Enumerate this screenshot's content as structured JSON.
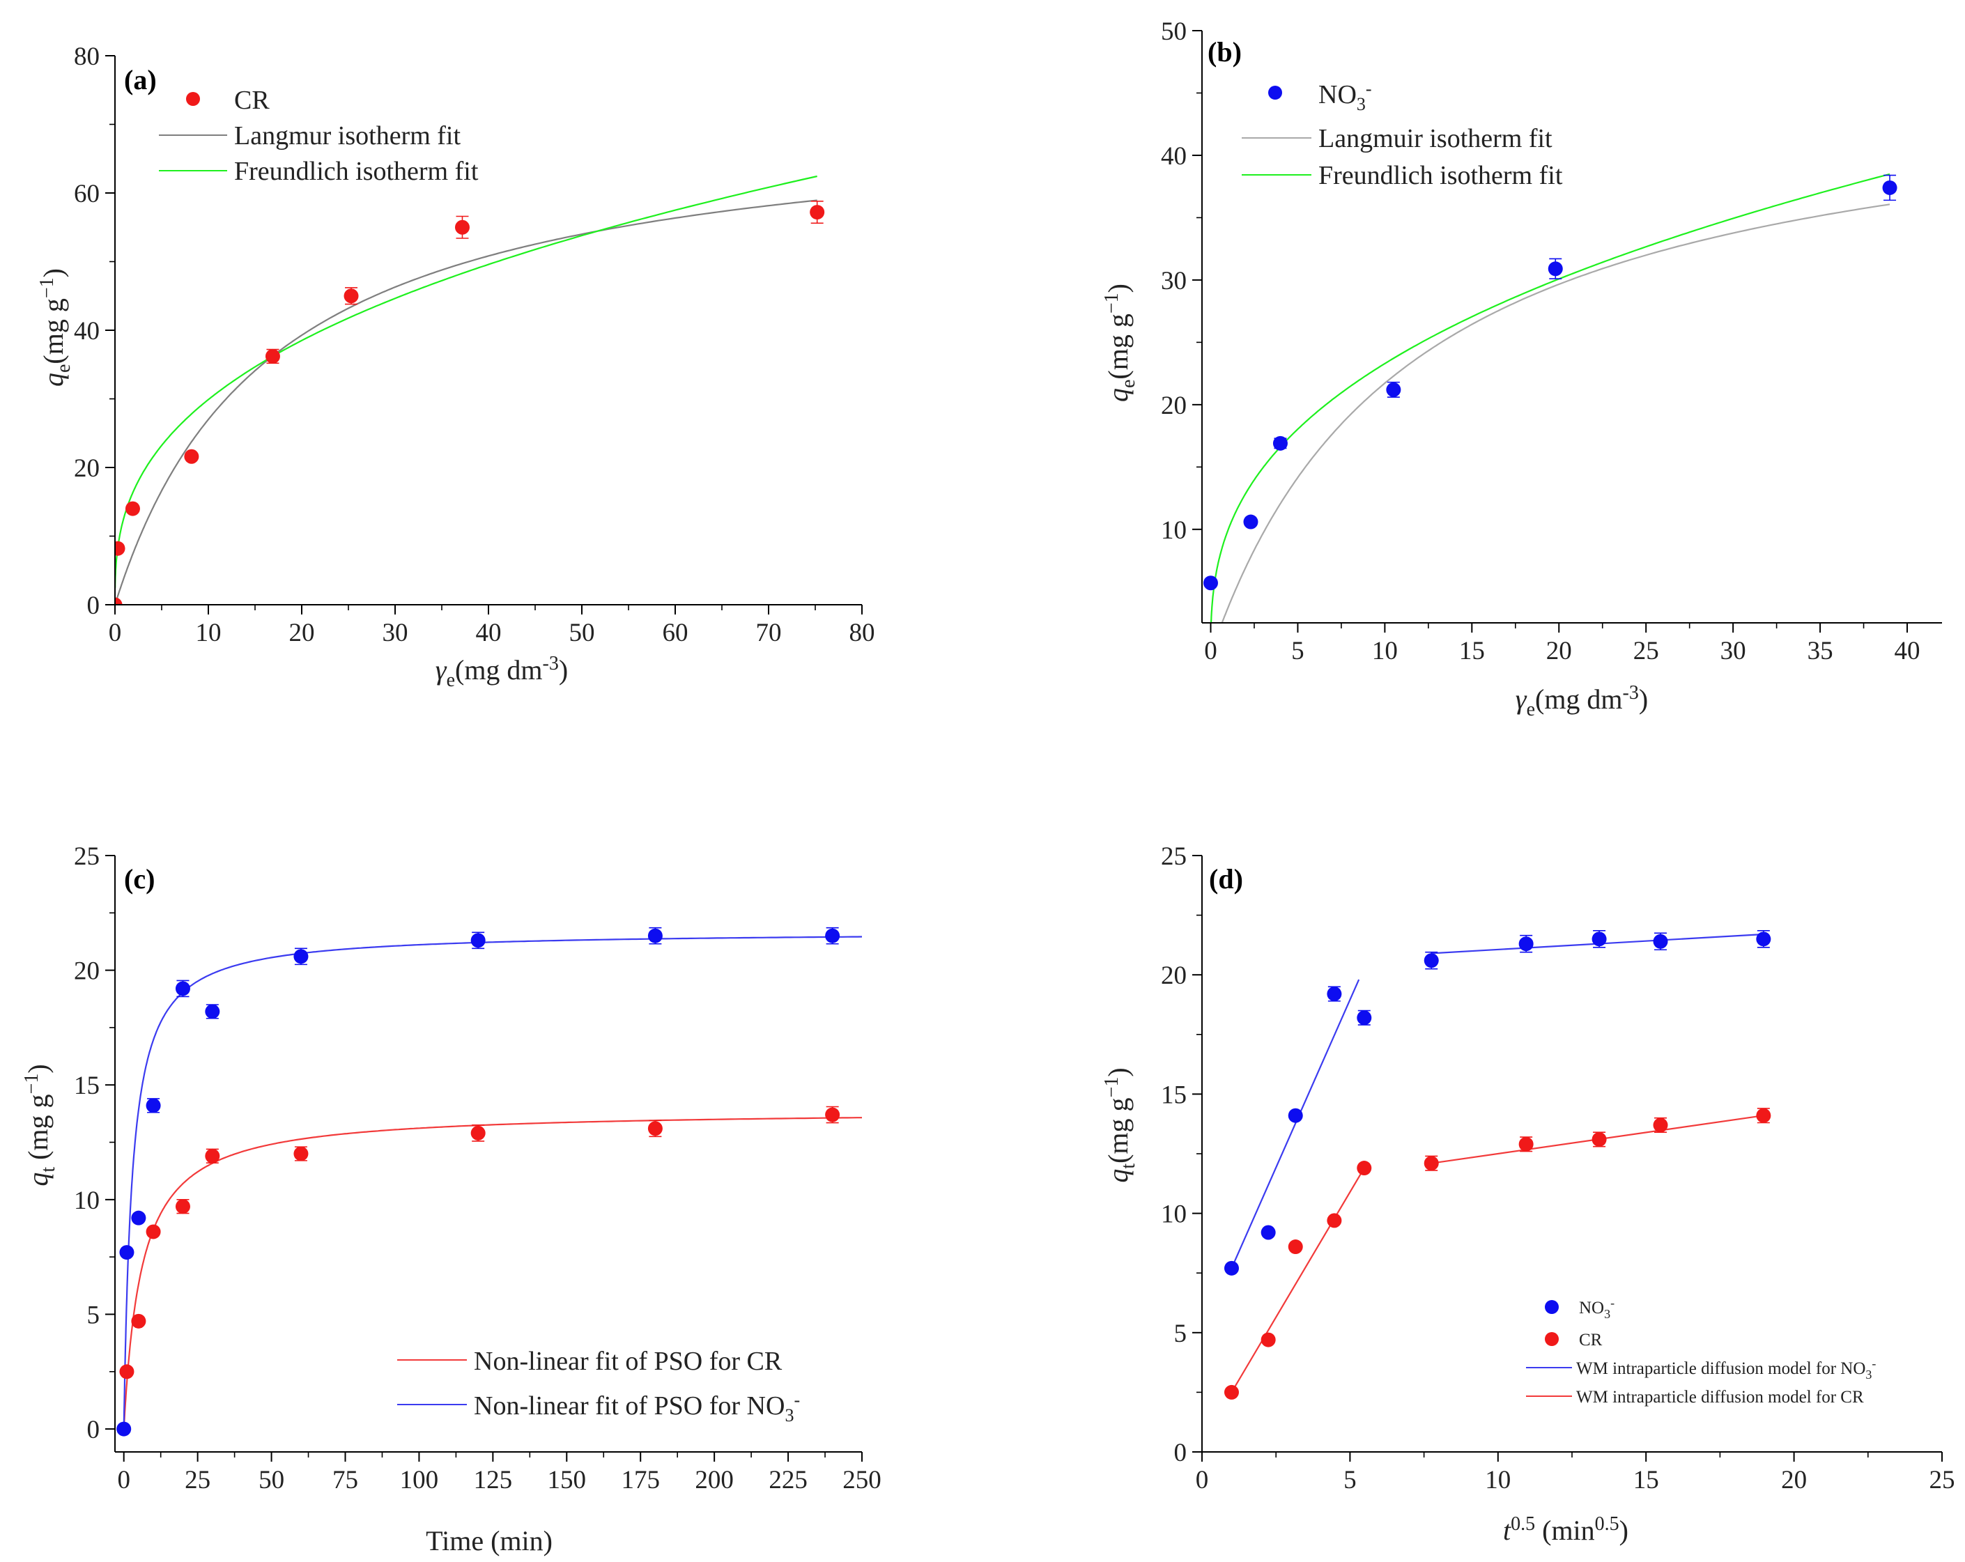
{
  "colors": {
    "red": "#f01919",
    "blue": "#0d0df0",
    "gray": "#7f7f7f",
    "green": "#1ef01e",
    "fit_red": "#f23a3a",
    "fit_blue": "#3b3bf0"
  },
  "chart_data": [
    {
      "id": "a",
      "type": "scatter",
      "panel_label": "(a)",
      "xlabel": {
        "sym": "γ",
        "sub": "e",
        "unit": "(mg dm",
        "sup": "-3",
        "close": ")"
      },
      "ylabel": {
        "sym": "q",
        "sub": "e",
        "unit": "(mg g",
        "sup": "−1",
        "close": ")"
      },
      "xlim": [
        0,
        80
      ],
      "ylim": [
        0,
        80
      ],
      "xticks": [
        "0",
        "10",
        "20",
        "30",
        "40",
        "50",
        "60",
        "70",
        "80"
      ],
      "yticks": [
        "0",
        "20",
        "40",
        "60",
        "80"
      ],
      "series": [
        {
          "name": "CR",
          "kind": "points",
          "color": "#f01919",
          "x": [
            0,
            0.3,
            1.9,
            8.2,
            16.9,
            25.3,
            37.2,
            75.2
          ],
          "y": [
            0,
            8.2,
            14.0,
            21.6,
            36.2,
            45.0,
            55.0,
            57.2
          ],
          "err": [
            0,
            0,
            0,
            0,
            1.0,
            1.2,
            1.6,
            1.6
          ]
        },
        {
          "name": "Langmur isotherm fit",
          "kind": "langmuir",
          "color": "#7f7f7f",
          "qmax": 72,
          "K": 0.06,
          "xmin": 0,
          "xmax": 75.2
        },
        {
          "name": "Freundlich isotherm fit",
          "kind": "freundlich",
          "color": "#1ef01e",
          "Kf": 12.9,
          "n": 0.365,
          "xmin": 0.01,
          "xmax": 75.2
        }
      ],
      "legend": {
        "title_parts": [
          {
            "t": "CR"
          }
        ]
      }
    },
    {
      "id": "b",
      "type": "scatter",
      "panel_label": "(b)",
      "xlabel": {
        "sym": "γ",
        "sub": "e",
        "unit": "(mg dm",
        "sup": "-3",
        "close": ")"
      },
      "ylabel": {
        "sym": "q",
        "sub": "e",
        "unit": "(mg g",
        "sup": "−1",
        "close": ")"
      },
      "xlim": [
        -0.5,
        42
      ],
      "ylim": [
        2.5,
        50
      ],
      "xticks": [
        "0",
        "5",
        "10",
        "15",
        "20",
        "25",
        "30",
        "35",
        "40"
      ],
      "yticks": [
        "10",
        "20",
        "30",
        "40",
        "50"
      ],
      "series": [
        {
          "name": "NO3-",
          "kind": "points",
          "color": "#0d0df0",
          "x": [
            0,
            2.3,
            4.0,
            10.5,
            19.8,
            39.0
          ],
          "y": [
            5.7,
            10.6,
            16.9,
            21.2,
            30.9,
            37.4
          ],
          "err": [
            0,
            0,
            0.4,
            0.6,
            0.8,
            1.0
          ]
        },
        {
          "name": "Langmuir isotherm fit",
          "kind": "langmuir",
          "color": "#a9a9a9",
          "qmax": 46.7,
          "K": 0.087,
          "xmin": 0.4,
          "xmax": 39.0
        },
        {
          "name": "Freundlich isotherm fit",
          "kind": "freundlich",
          "color": "#1ef01e",
          "Kf": 9.96,
          "n": 0.369,
          "xmin": 0.01,
          "xmax": 39.0
        }
      ],
      "legend": {
        "no3_base": "NO",
        "no3_sub": "3",
        "no3_sup": "-"
      }
    },
    {
      "id": "c",
      "type": "scatter",
      "panel_label": "(c)",
      "xlabel": {
        "plain": "Time (min)"
      },
      "ylabel": {
        "sym": "q",
        "sub": "t",
        "unit": " (mg g",
        "sup": "−1",
        "close": ")"
      },
      "xlim": [
        -3,
        250
      ],
      "ylim": [
        -1,
        25
      ],
      "xticks": [
        "0",
        "25",
        "50",
        "75",
        "100",
        "125",
        "150",
        "175",
        "200",
        "225",
        "250"
      ],
      "yticks": [
        "0",
        "5",
        "10",
        "15",
        "20",
        "25"
      ],
      "series": [
        {
          "name": "CR",
          "kind": "points",
          "color": "#f01919",
          "x": [
            1,
            5,
            10,
            20,
            30,
            60,
            120,
            180,
            240
          ],
          "y": [
            2.5,
            4.7,
            8.6,
            9.7,
            11.9,
            12.0,
            12.9,
            13.1,
            13.7
          ],
          "err": [
            0,
            0,
            0,
            0.3,
            0.3,
            0.3,
            0.35,
            0.35,
            0.35
          ]
        },
        {
          "name": "NO3-",
          "kind": "points",
          "color": "#0d0df0",
          "x": [
            0,
            1,
            5,
            10,
            20,
            30,
            60,
            120,
            180,
            240
          ],
          "y": [
            0,
            7.7,
            9.2,
            14.1,
            19.2,
            18.2,
            20.6,
            21.3,
            21.5,
            21.5
          ],
          "err": [
            0,
            0,
            0,
            0.3,
            0.35,
            0.3,
            0.35,
            0.35,
            0.35,
            0.35
          ]
        },
        {
          "name": "Non-linear fit of PSO for CR",
          "kind": "pso",
          "color": "#f23a3a",
          "qe": 13.9,
          "k": 0.012,
          "xmin": 0,
          "xmax": 250
        },
        {
          "name": "Non-linear fit of PSO for NO3-",
          "kind": "pso",
          "color": "#3b3bf0",
          "qe": 21.7,
          "k": 0.0165,
          "xmin": 0,
          "xmax": 250
        }
      ],
      "legend": {
        "cr_text": "Non-linear fit of PSO for CR",
        "no3_text": "Non-linear fit of PSO for NO",
        "no3_sub": "3",
        "no3_sup": "-"
      }
    },
    {
      "id": "d",
      "type": "scatter",
      "panel_label": "(d)",
      "xlabel": {
        "sym": "t",
        "sup": "0.5",
        "unit": " (min",
        "sup2": "0.5",
        "close": ")"
      },
      "ylabel": {
        "sym": "q",
        "sub": "t",
        "unit": "(mg g",
        "sup": "−1",
        "close": ")"
      },
      "xlim": [
        0,
        25
      ],
      "ylim": [
        0,
        25
      ],
      "xticks": [
        "0",
        "5",
        "10",
        "15",
        "20",
        "25"
      ],
      "yticks": [
        "0",
        "5",
        "10",
        "15",
        "20",
        "25"
      ],
      "series": [
        {
          "name": "NO3-",
          "kind": "points",
          "color": "#0d0df0",
          "x": [
            1.0,
            2.24,
            3.16,
            4.47,
            5.48,
            7.75,
            10.95,
            13.42,
            15.49,
            18.97
          ],
          "y": [
            7.7,
            9.2,
            14.1,
            19.2,
            18.2,
            20.6,
            21.3,
            21.5,
            21.4,
            21.5
          ],
          "err": [
            0,
            0,
            0,
            0.3,
            0.3,
            0.35,
            0.35,
            0.35,
            0.35,
            0.35
          ]
        },
        {
          "name": "CR",
          "kind": "points",
          "color": "#f01919",
          "x": [
            1.0,
            2.24,
            3.16,
            4.47,
            5.48,
            7.75,
            10.95,
            13.42,
            15.49,
            18.97
          ],
          "y": [
            2.5,
            4.7,
            8.6,
            9.7,
            11.9,
            12.1,
            12.9,
            13.1,
            13.7,
            14.1
          ],
          "err": [
            0,
            0,
            0,
            0,
            0,
            0.3,
            0.3,
            0.3,
            0.3,
            0.3
          ]
        },
        {
          "name": "WM intraparticle diffusion model for NO3-",
          "kind": "segments",
          "color": "#3b3bf0",
          "segments": [
            {
              "x": [
                1.0,
                5.3
              ],
              "y": [
                7.7,
                19.8
              ]
            },
            {
              "x": [
                7.75,
                18.97
              ],
              "y": [
                20.9,
                21.7
              ]
            }
          ]
        },
        {
          "name": "WM intraparticle diffusion model for CR",
          "kind": "segments",
          "color": "#f23a3a",
          "segments": [
            {
              "x": [
                1.0,
                5.48
              ],
              "y": [
                2.5,
                11.9
              ]
            },
            {
              "x": [
                7.75,
                18.97
              ],
              "y": [
                12.1,
                14.1
              ]
            }
          ]
        }
      ],
      "legend": {
        "no3_base": "NO",
        "no3_sub": "3",
        "no3_sup": "-",
        "cr_text": "CR",
        "wm_no3": "WM intraparticle diffusion model for NO",
        "wm_cr": "WM intraparticle diffusion model for CR"
      }
    }
  ]
}
